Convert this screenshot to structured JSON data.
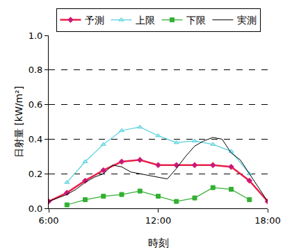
{
  "chart_data": {
    "type": "line",
    "xlabel": "時刻",
    "ylabel": "日射量 [kW/m²]",
    "xlim": [
      6,
      18
    ],
    "xticks": [
      {
        "value": 6,
        "label": "6:00"
      },
      {
        "value": 12,
        "label": "12:00"
      },
      {
        "value": 18,
        "label": "18:00"
      }
    ],
    "ylim": [
      0,
      1
    ],
    "yticks": [
      {
        "value": 0,
        "label": "0.0"
      },
      {
        "value": 0.2,
        "label": "0.2"
      },
      {
        "value": 0.4,
        "label": "0.4"
      },
      {
        "value": 0.6,
        "label": "0.6"
      },
      {
        "value": 0.8,
        "label": "0.8"
      },
      {
        "value": 1,
        "label": "1.0"
      }
    ],
    "grid": true,
    "legend": "top",
    "series": [
      {
        "name": "予測",
        "color": "#e8204a",
        "marker": "diamond",
        "line_style": "solid",
        "x": [
          6,
          7,
          8,
          9,
          10,
          11,
          12,
          13,
          14,
          15,
          16,
          17,
          18
        ],
        "values": [
          0.04,
          0.09,
          0.16,
          0.22,
          0.27,
          0.28,
          0.25,
          0.25,
          0.25,
          0.25,
          0.24,
          0.16,
          0.04
        ]
      },
      {
        "name": "上限",
        "color": "#55d0dc",
        "marker": "triangle-up",
        "line_style": "solid",
        "x": [
          7,
          8,
          9,
          10,
          11,
          12,
          13,
          14,
          15,
          16,
          17
        ],
        "values": [
          0.15,
          0.27,
          0.37,
          0.45,
          0.47,
          0.42,
          0.38,
          0.39,
          0.37,
          0.33,
          0.2
        ]
      },
      {
        "name": "下限",
        "color": "#33b033",
        "marker": "square",
        "line_style": "solid",
        "x": [
          7,
          8,
          9,
          10,
          11,
          12,
          13,
          14,
          15,
          16,
          17
        ],
        "values": [
          0.02,
          0.05,
          0.07,
          0.08,
          0.1,
          0.07,
          0.04,
          0.06,
          0.12,
          0.11,
          0.05
        ]
      },
      {
        "name": "実測",
        "color": "#000000",
        "marker": "none",
        "line_style": "solid",
        "x": [
          6,
          6.5,
          7,
          7.5,
          8,
          8.5,
          9,
          9.5,
          10,
          10.5,
          11,
          11.5,
          12,
          12.5,
          13,
          13.5,
          14,
          14.5,
          15,
          15.5,
          16,
          16.5,
          17,
          17.5,
          18
        ],
        "values": [
          0.04,
          0.06,
          0.08,
          0.11,
          0.15,
          0.18,
          0.2,
          0.25,
          0.24,
          0.21,
          0.2,
          0.19,
          0.18,
          0.17,
          0.23,
          0.3,
          0.36,
          0.39,
          0.41,
          0.4,
          0.32,
          0.28,
          0.2,
          0.12,
          0.04
        ]
      }
    ]
  }
}
